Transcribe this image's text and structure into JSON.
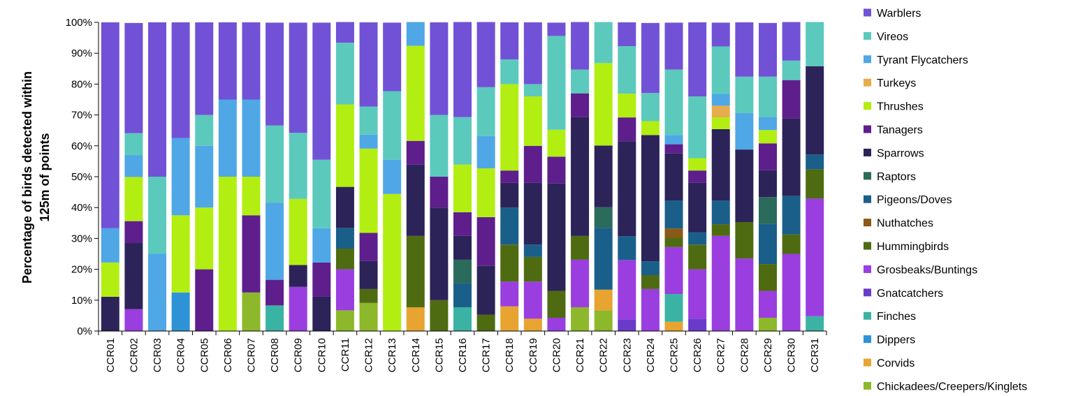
{
  "chart_data": {
    "type": "bar",
    "stacked": true,
    "ylabel_line1": "Percentage of birds detected within",
    "ylabel_line2": "125m of points",
    "ylim": [
      0,
      100
    ],
    "yticks": [
      "0%",
      "10%",
      "20%",
      "30%",
      "40%",
      "50%",
      "60%",
      "70%",
      "80%",
      "90%",
      "100%"
    ],
    "legend_position": "right",
    "grid": false,
    "categories": [
      "CCR01",
      "CCR02",
      "CCR03",
      "CCR04",
      "CCR05",
      "CCR06",
      "CCR07",
      "CCR08",
      "CCR09",
      "CCR10",
      "CCR11",
      "CCR12",
      "CCR13",
      "CCR14",
      "CCR15",
      "CCR16",
      "CCR17",
      "CCR18",
      "CCR19",
      "CCR20",
      "CCR21",
      "CCR22",
      "CCR23",
      "CCR24",
      "CCR25",
      "CCR26",
      "CCR27",
      "CCR28",
      "CCR29",
      "CCR30",
      "CCR31"
    ],
    "series": [
      {
        "name": "Chickadees/Creepers/Kinglets",
        "color": "#8db82b",
        "values": [
          0,
          0,
          0,
          0,
          0,
          0,
          12.5,
          0,
          0,
          0,
          6.7,
          9.1,
          0,
          0,
          0,
          0,
          0,
          0,
          0,
          0,
          7.7,
          6.7,
          0,
          0,
          0,
          0,
          0,
          0,
          4.3,
          0,
          0
        ]
      },
      {
        "name": "Corvids",
        "color": "#e8a431",
        "values": [
          0,
          0,
          0,
          0,
          0,
          0,
          0,
          0,
          0,
          0,
          0,
          0,
          0,
          7.7,
          0,
          0,
          0,
          8,
          4,
          0,
          0,
          6.7,
          0,
          0,
          3,
          0,
          0,
          0,
          0,
          0,
          0
        ]
      },
      {
        "name": "Dippers",
        "color": "#2e93d6",
        "values": [
          0,
          0,
          0,
          12.5,
          0,
          0,
          0,
          0,
          0,
          0,
          0,
          0,
          0,
          0,
          0,
          0,
          0,
          0,
          0,
          0,
          0,
          0,
          0,
          0,
          0,
          0,
          0,
          0,
          0,
          0,
          0
        ]
      },
      {
        "name": "Finches",
        "color": "#3bb3a4",
        "values": [
          0,
          0,
          0,
          0,
          0,
          0,
          0,
          8.3,
          0,
          0,
          0,
          0,
          0,
          0,
          0,
          7.7,
          0,
          0,
          0,
          0,
          0,
          0,
          0,
          0,
          9,
          0,
          0,
          0,
          0,
          0,
          4.8
        ]
      },
      {
        "name": "Gnatcatchers",
        "color": "#6a3bc9",
        "values": [
          0,
          0,
          0,
          0,
          0,
          0,
          0,
          0,
          0,
          0,
          0,
          0,
          0,
          0,
          0,
          0,
          0,
          0,
          0,
          0,
          0,
          0,
          3.8,
          0,
          0,
          4,
          0,
          0,
          0,
          0,
          0
        ]
      },
      {
        "name": "Grosbeaks/Buntings",
        "color": "#9a3ee0",
        "values": [
          0,
          7.1,
          0,
          0,
          0,
          0,
          0,
          0,
          14.3,
          0,
          13.3,
          0,
          0,
          0,
          0,
          0,
          0,
          8,
          12,
          4.3,
          15.4,
          0,
          19.2,
          13.6,
          15.2,
          16,
          30.8,
          23.5,
          8.7,
          25,
          38.1
        ]
      },
      {
        "name": "Hummingbirds",
        "color": "#4f6b12",
        "values": [
          0,
          0,
          0,
          0,
          0,
          0,
          0,
          0,
          0,
          0,
          6.7,
          4.5,
          0,
          23.1,
          10,
          0,
          5.3,
          12,
          8,
          8.7,
          7.7,
          0,
          0,
          4.5,
          3,
          8,
          3.8,
          11.8,
          8.7,
          6.3,
          9.5
        ]
      },
      {
        "name": "Nuthatches",
        "color": "#8a5a16",
        "values": [
          0,
          0,
          0,
          0,
          0,
          0,
          0,
          0,
          0,
          0,
          0,
          0,
          0,
          0,
          0,
          0,
          0,
          0,
          0,
          0,
          0,
          0,
          0,
          0,
          3,
          0,
          0,
          0,
          0,
          0,
          0
        ]
      },
      {
        "name": "Pigeons/Doves",
        "color": "#1a5f8a",
        "values": [
          0,
          0,
          0,
          0,
          0,
          0,
          0,
          0,
          0,
          0,
          6.7,
          0,
          0,
          0,
          0,
          7.7,
          0,
          12,
          4,
          0,
          0,
          20,
          7.7,
          4.5,
          9.1,
          4,
          7.7,
          0,
          13,
          12.5,
          4.8
        ]
      },
      {
        "name": "Raptors",
        "color": "#2a6b5c",
        "values": [
          0,
          0,
          0,
          0,
          0,
          0,
          0,
          0,
          0,
          0,
          0,
          0,
          0,
          0,
          0,
          7.7,
          0,
          0,
          0,
          0,
          0,
          6.7,
          0,
          0,
          0,
          0,
          0,
          0,
          8.7,
          0,
          0
        ]
      },
      {
        "name": "Sparrows",
        "color": "#2c2358",
        "values": [
          11.1,
          21.4,
          0,
          0,
          0,
          0,
          0,
          0,
          7.1,
          11.1,
          13.3,
          9.1,
          0,
          23.1,
          30,
          7.7,
          15.8,
          8,
          20,
          34.8,
          38.5,
          20,
          30.8,
          40.9,
          15.2,
          16,
          23.1,
          23.5,
          8.7,
          25,
          28.6
        ]
      },
      {
        "name": "Tanagers",
        "color": "#5e1e8c",
        "values": [
          0,
          7.1,
          0,
          0,
          20,
          0,
          25,
          8.3,
          0,
          11.1,
          0,
          9.1,
          0,
          7.7,
          10,
          7.7,
          15.8,
          4,
          12,
          8.7,
          7.7,
          0,
          7.7,
          0,
          3,
          4,
          0,
          0,
          8.7,
          12.5,
          0
        ]
      },
      {
        "name": "Thrushes",
        "color": "#b2ee12",
        "values": [
          11.1,
          14.3,
          0,
          25,
          20,
          50,
          12.5,
          0,
          21.4,
          0,
          26.7,
          27.3,
          44.4,
          30.8,
          0,
          15.4,
          15.8,
          28,
          16,
          8.7,
          0,
          26.7,
          7.7,
          4.5,
          0,
          4,
          3.8,
          0,
          4.3,
          0,
          0
        ]
      },
      {
        "name": "Turkeys",
        "color": "#e6ad4c",
        "values": [
          0,
          0,
          0,
          0,
          0,
          0,
          0,
          0,
          0,
          0,
          0,
          0,
          0,
          0,
          0,
          0,
          0,
          0,
          0,
          0,
          0,
          0,
          0,
          0,
          0,
          0,
          3.8,
          0,
          0,
          0,
          0
        ]
      },
      {
        "name": "Tyrant Flycatchers",
        "color": "#4fa7e6",
        "values": [
          11.1,
          7.1,
          25,
          25,
          20,
          25,
          25,
          25,
          0,
          11.1,
          0,
          4.5,
          11.1,
          7.7,
          0,
          0,
          10.5,
          0,
          0,
          0,
          0,
          0,
          0,
          0,
          3,
          0,
          3.8,
          11.8,
          4.3,
          0,
          0
        ]
      },
      {
        "name": "Vireos",
        "color": "#5cc9bd",
        "values": [
          0,
          7.1,
          25,
          0,
          10,
          0,
          0,
          25,
          21.4,
          22.2,
          20,
          9.1,
          22.2,
          0,
          20,
          15.4,
          15.8,
          8,
          4,
          30.4,
          7.7,
          13.3,
          15.4,
          9.1,
          21.2,
          20,
          15.4,
          11.8,
          13,
          6.3,
          14.3
        ]
      },
      {
        "name": "Warblers",
        "color": "#7152d6",
        "values": [
          66.7,
          35.7,
          50,
          37.5,
          30,
          25,
          25,
          33.3,
          35.7,
          44.4,
          6.7,
          27.3,
          22.2,
          0,
          30,
          30.8,
          21.1,
          12,
          20,
          4.3,
          15.4,
          0,
          7.7,
          22.7,
          15.2,
          24,
          7.7,
          17.6,
          17.4,
          12.5,
          0
        ]
      }
    ]
  }
}
